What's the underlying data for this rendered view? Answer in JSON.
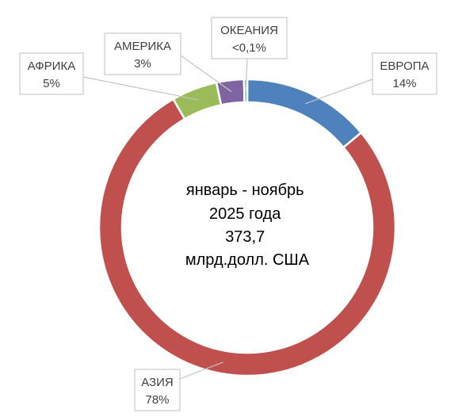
{
  "chart_data": {
    "type": "pie",
    "variant": "donut",
    "center_text": [
      "январь - ноябрь",
      "2025 года",
      "373,7",
      "млрд.долл. США"
    ],
    "slices": [
      {
        "key": "europe",
        "name": "ЕВРОПА",
        "value": 14,
        "value_label": "14%",
        "color": "#4f81bd"
      },
      {
        "key": "asia",
        "name": "АЗИЯ",
        "value": 78,
        "value_label": "78%",
        "color": "#c0504d"
      },
      {
        "key": "africa",
        "name": "АФРИКА",
        "value": 5,
        "value_label": "5%",
        "color": "#9bbb59"
      },
      {
        "key": "america",
        "name": "АМЕРИКА",
        "value": 3,
        "value_label": "3%",
        "color": "#8064a2"
      },
      {
        "key": "oceania",
        "name": "ОКЕАНИЯ",
        "value": 0.1,
        "value_label": "<0,1%",
        "color": "#4bacc6"
      }
    ],
    "start": "top",
    "direction": "clockwise",
    "legend": "none"
  }
}
